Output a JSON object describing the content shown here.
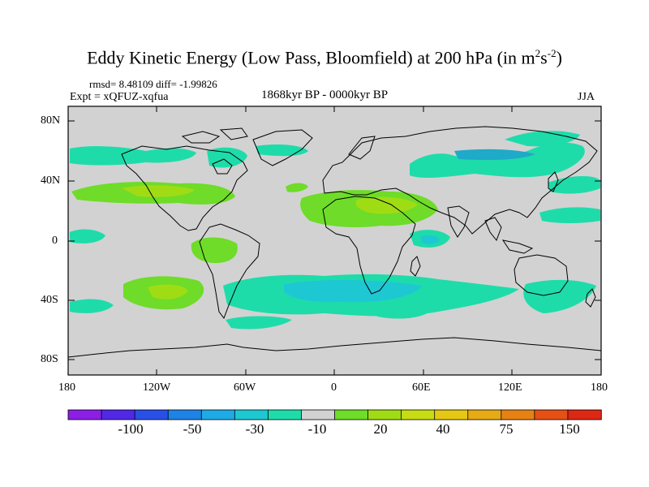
{
  "title": {
    "main": "Eddy Kinetic Energy (Low Pass, Bloomfield) at 200 hPa (in m",
    "sup1": "2",
    "mid": "s",
    "sup2": "-2",
    "end": ")"
  },
  "stats": "rmsd= 8.48109 diff= -1.99826",
  "experiment": "Expt = xQFUZ-xqfua",
  "period": "1868kyr BP - 0000kyr BP",
  "season": "JJA",
  "axes": {
    "lat_labels": [
      "80N",
      "40N",
      "0",
      "40S",
      "80S"
    ],
    "lon_labels": [
      "180",
      "120W",
      "60W",
      "0",
      "60E",
      "120E",
      "180"
    ]
  },
  "colorbar": {
    "colors": [
      "#8c1ee6",
      "#5028e6",
      "#2850e6",
      "#1e82e6",
      "#1eaae6",
      "#1ec8d2",
      "#1edcaa",
      "#d2d2d2",
      "#6edc28",
      "#a0dc14",
      "#c8dc14",
      "#e6c814",
      "#e6aa14",
      "#e68214",
      "#e65014",
      "#dc2814"
    ],
    "labels": [
      "-100",
      "-50",
      "-30",
      "-10",
      "20",
      "40",
      "75",
      "150"
    ]
  },
  "map_colors": {
    "background": "#d2d2d2",
    "teal": "#1edcaa",
    "cyan": "#1ec8d2",
    "green": "#6edc28",
    "yellowgreen": "#a0dc14"
  }
}
